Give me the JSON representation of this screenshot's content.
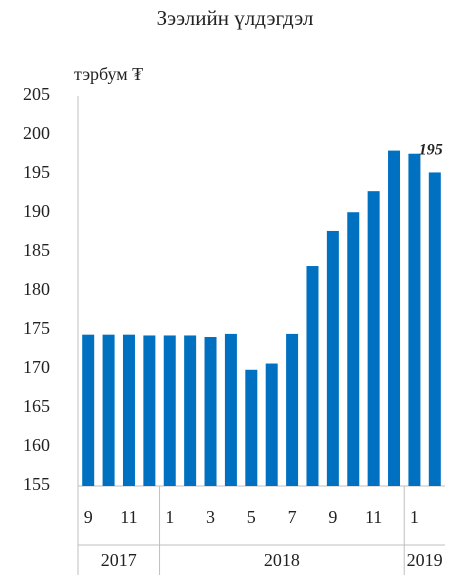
{
  "chart_data": {
    "type": "bar",
    "title": "Зээлийн үлдэгдэл",
    "unit_label": "тэрбум ₮",
    "categories": [
      "9",
      null,
      "11",
      null,
      "1",
      null,
      "3",
      null,
      "5",
      null,
      "7",
      null,
      "9",
      null,
      "11",
      null,
      "1",
      null
    ],
    "values": [
      174.4,
      174.4,
      174.4,
      174.3,
      174.3,
      174.3,
      174.1,
      174.5,
      169.9,
      170.7,
      174.5,
      183.2,
      187.7,
      190.1,
      192.8,
      198.0,
      197.6,
      195.2
    ],
    "color": "#0070c0",
    "annotation": "195",
    "year_groups": [
      {
        "label": "2017",
        "count": 4
      },
      {
        "label": "2018",
        "count": 12
      },
      {
        "label": "2019",
        "count": 2
      }
    ],
    "ylim": [
      155,
      205
    ],
    "yticks": [
      155,
      160,
      165,
      170,
      175,
      180,
      185,
      190,
      195,
      200,
      205
    ],
    "grid": false
  }
}
